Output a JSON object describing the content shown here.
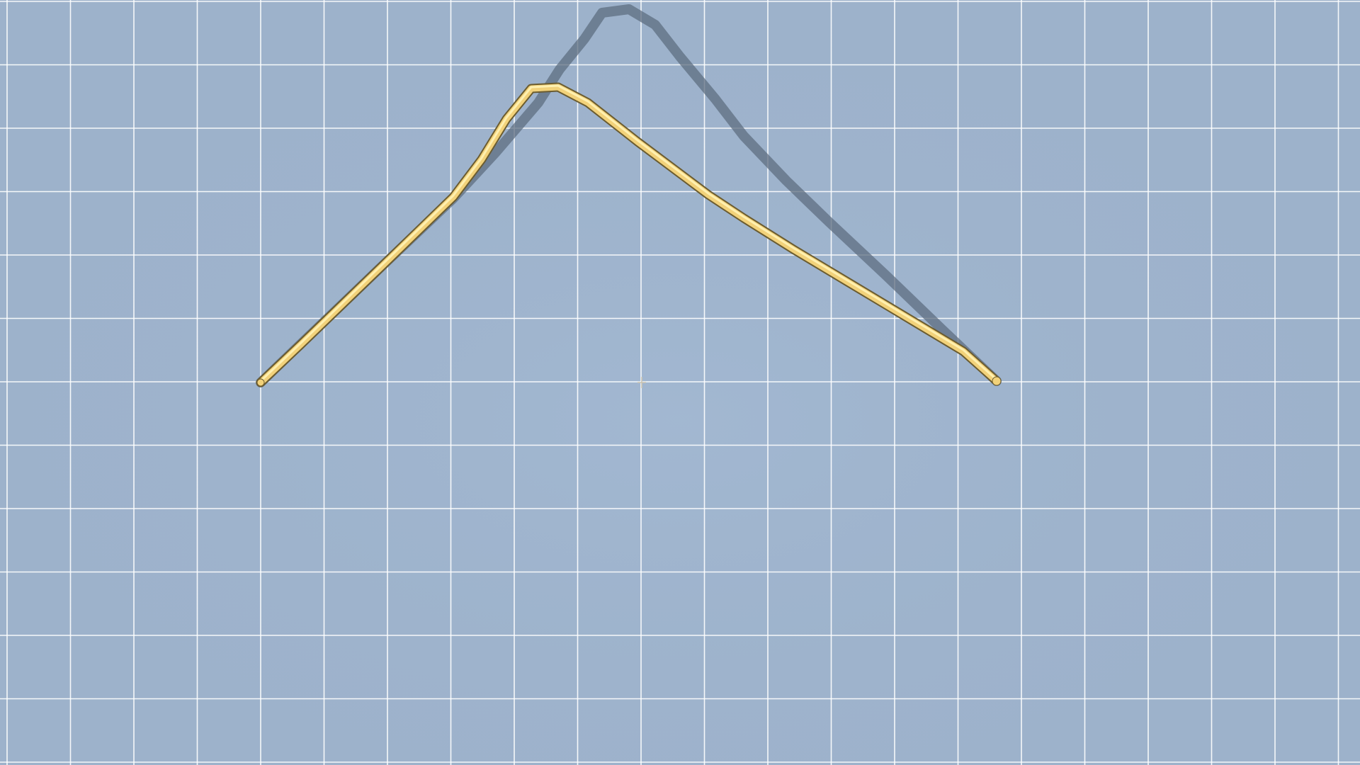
{
  "scene": {
    "kind": "3d-viewport",
    "background_color": "#9db2cb",
    "grid_line_color": "#ffffff",
    "grid_visible": true
  },
  "objects": [
    {
      "name": "target-shadow-wire",
      "role": "target-shape",
      "color": "#5d6e80",
      "opacity": 0.75
    },
    {
      "name": "bent-wire",
      "role": "player-shape",
      "color": "#f2d27a",
      "highlight_color": "#fff0b0",
      "outline_color": "#6b5c30"
    }
  ],
  "cursor": {
    "icon": "crosshair-cursor-icon",
    "color": "#c9c2b0"
  }
}
